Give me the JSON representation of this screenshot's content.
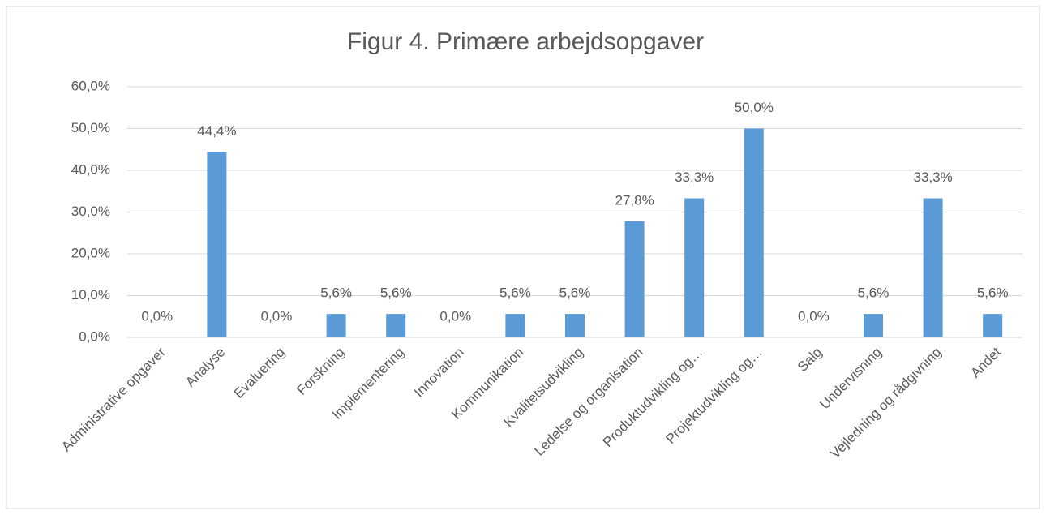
{
  "chart_data": {
    "type": "bar",
    "title": "Figur 4. Primære arbejdsopgaver",
    "categories": [
      "Administrative opgaver",
      "Analyse",
      "Evaluering",
      "Forskning",
      "Implementering",
      "Innovation",
      "Kommunikation",
      "Kvalitetsudvikling",
      "Ledelse og organisation",
      "Produktudvikling og…",
      "Projektudvikling og…",
      "Salg",
      "Undervisning",
      "Vejledning og rådgivning",
      "Andet"
    ],
    "values": [
      0,
      44.4,
      0,
      5.6,
      5.6,
      0,
      5.6,
      5.6,
      27.8,
      33.3,
      50,
      0,
      5.6,
      33.3,
      5.6
    ],
    "value_labels": [
      "0,0%",
      "44,4%",
      "0,0%",
      "5,6%",
      "5,6%",
      "0,0%",
      "5,6%",
      "5,6%",
      "27,8%",
      "33,3%",
      "50,0%",
      "0,0%",
      "5,6%",
      "33,3%",
      "5,6%"
    ],
    "color": "#5b9bd5",
    "ylim": [
      0,
      60
    ],
    "yticks": [
      {
        "value": 0,
        "label": "0,0%"
      },
      {
        "value": 10,
        "label": "10,0%"
      },
      {
        "value": 20,
        "label": "20,0%"
      },
      {
        "value": 30,
        "label": "30,0%"
      },
      {
        "value": 40,
        "label": "40,0%"
      },
      {
        "value": 50,
        "label": "50,0%"
      },
      {
        "value": 60,
        "label": "60,0%"
      }
    ],
    "grid": true
  }
}
